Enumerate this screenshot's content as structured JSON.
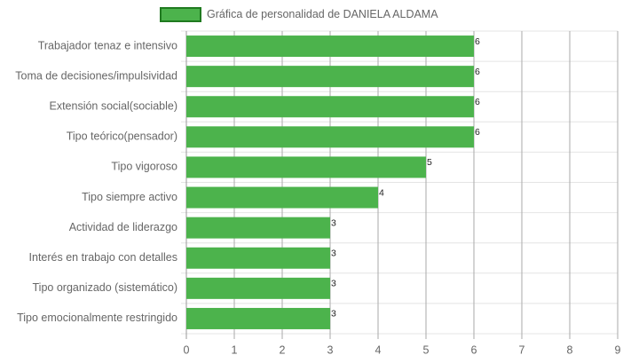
{
  "chart_data": {
    "type": "bar",
    "categories": [
      "Trabajador tenaz e intensivo",
      "Toma de decisiones/impulsividad",
      "Extensión social(sociable)",
      "Tipo teórico(pensador)",
      "Tipo vigoroso",
      "Tipo siempre activo",
      "Actividad de liderazgo",
      "Interés en trabajo con detalles",
      "Tipo organizado (sistemático)",
      "Tipo emocionalmente restringido"
    ],
    "series": [
      {
        "name": "Gráfica de personalidad de DANIELA ALDAMA",
        "color": "#4cb34c",
        "values": [
          6,
          6,
          6,
          6,
          5,
          4,
          3,
          3,
          3,
          3
        ]
      }
    ],
    "xlim": [
      0,
      9
    ],
    "xticks": [
      0,
      1,
      2,
      3,
      4,
      5,
      6,
      7,
      8,
      9
    ],
    "grid": true
  }
}
